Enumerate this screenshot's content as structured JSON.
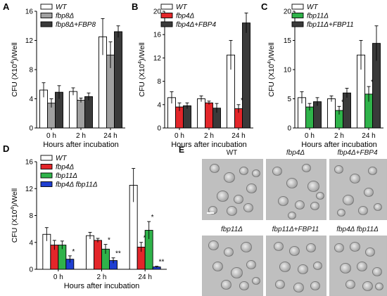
{
  "panel_letters": [
    "A",
    "B",
    "C",
    "D",
    "E"
  ],
  "colors": {
    "WT": "#ffffff",
    "fbp8": "#a0a0a0",
    "fbp4": "#e3262a",
    "fbp11": "#2fb34a",
    "comp": "#3a3a3a",
    "double": "#1f3fd1"
  },
  "chart_data": [
    {
      "panel": "A",
      "type": "bar",
      "categories": [
        "0 h",
        "2 h",
        "24 h"
      ],
      "xlabel": "Hours after incubation",
      "ylabel_main": "CFU (X10",
      "ylabel_sup": "4",
      "ylabel_tail": ")/Well",
      "ylim": [
        0,
        16
      ],
      "yticks": [
        "0",
        "4",
        "8",
        "12",
        "16"
      ],
      "legend_position": "top-left",
      "series": [
        {
          "name": "WT",
          "color": "#ffffff",
          "values": [
            5.2,
            5.0,
            12.5
          ],
          "errors": [
            1.0,
            0.5,
            2.5
          ],
          "marks": [
            "",
            "",
            ""
          ]
        },
        {
          "name": "fbp8Δ",
          "color": "#a0a0a0",
          "values": [
            3.4,
            3.8,
            10.0
          ],
          "errors": [
            0.6,
            0.3,
            1.8
          ],
          "marks": [
            "",
            "",
            ""
          ]
        },
        {
          "name": "fbp8Δ+FBP8",
          "color": "#3a3a3a",
          "values": [
            4.9,
            4.3,
            13.2
          ],
          "errors": [
            0.9,
            0.5,
            0.8
          ],
          "marks": [
            "",
            "",
            ""
          ]
        }
      ]
    },
    {
      "panel": "B",
      "type": "bar",
      "categories": [
        "0 h",
        "2 h",
        "24 h"
      ],
      "xlabel": "Hours after incubation",
      "ylabel_main": "CFU (X10",
      "ylabel_sup": "4",
      "ylabel_tail": ")/Well",
      "ylim": [
        0,
        20
      ],
      "yticks": [
        "0",
        "4",
        "8",
        "12",
        "16",
        "20"
      ],
      "legend_position": "top-left",
      "series": [
        {
          "name": "WT",
          "color": "#ffffff",
          "values": [
            5.2,
            5.0,
            12.5
          ],
          "errors": [
            1.0,
            0.5,
            2.5
          ],
          "marks": [
            "",
            "",
            ""
          ]
        },
        {
          "name": "fbp4Δ",
          "color": "#e3262a",
          "values": [
            3.6,
            4.3,
            3.3
          ],
          "errors": [
            0.7,
            0.3,
            0.7
          ],
          "marks": [
            "",
            "",
            "*"
          ]
        },
        {
          "name": "fbp4Δ+FBP4",
          "color": "#3a3a3a",
          "values": [
            3.8,
            3.4,
            18.0
          ],
          "errors": [
            0.5,
            0.8,
            1.7
          ],
          "marks": [
            "",
            "",
            ""
          ]
        }
      ]
    },
    {
      "panel": "C",
      "type": "bar",
      "categories": [
        "0 h",
        "2 h",
        "24 h"
      ],
      "xlabel": "Hours after incubation",
      "ylabel_main": "CFU (X10",
      "ylabel_sup": "4",
      "ylabel_tail": ")/Well",
      "ylim": [
        0,
        20
      ],
      "yticks": [
        "0",
        "5",
        "10",
        "15",
        "20"
      ],
      "legend_position": "top-left",
      "series": [
        {
          "name": "WT",
          "color": "#ffffff",
          "values": [
            5.2,
            5.0,
            12.5
          ],
          "errors": [
            1.0,
            0.5,
            2.5
          ],
          "marks": [
            "",
            "",
            ""
          ]
        },
        {
          "name": "fbp11Δ",
          "color": "#2fb34a",
          "values": [
            3.6,
            3.0,
            5.8
          ],
          "errors": [
            0.6,
            0.7,
            1.3
          ],
          "marks": [
            "",
            "*",
            "*"
          ]
        },
        {
          "name": "fbp11Δ+FBP11",
          "color": "#3a3a3a",
          "values": [
            4.5,
            6.0,
            14.5
          ],
          "errors": [
            0.7,
            0.8,
            3.0
          ],
          "marks": [
            "",
            "",
            ""
          ]
        }
      ]
    },
    {
      "panel": "D",
      "type": "bar",
      "categories": [
        "0 h",
        "2 h",
        "24 h"
      ],
      "xlabel": "Hours after incubation",
      "ylabel_main": "CFU (X10",
      "ylabel_sup": "4",
      "ylabel_tail": ")/Well",
      "ylim": [
        0,
        16
      ],
      "yticks": [
        "0",
        "4",
        "8",
        "12",
        "16"
      ],
      "legend_position": "top-left",
      "series": [
        {
          "name": "WT",
          "color": "#ffffff",
          "values": [
            5.2,
            5.0,
            12.5
          ],
          "errors": [
            1.0,
            0.5,
            2.5
          ],
          "marks": [
            "",
            "",
            ""
          ]
        },
        {
          "name": "fbp4Δ",
          "color": "#e3262a",
          "values": [
            3.6,
            4.3,
            3.3
          ],
          "errors": [
            0.7,
            0.3,
            0.7
          ],
          "marks": [
            "",
            "",
            "*"
          ]
        },
        {
          "name": "fbp11Δ",
          "color": "#2fb34a",
          "values": [
            3.6,
            3.0,
            5.8
          ],
          "errors": [
            0.6,
            0.7,
            1.3
          ],
          "marks": [
            "",
            "*",
            "*"
          ]
        },
        {
          "name": "fbp4Δ fbp11Δ",
          "color": "#1f3fd1",
          "values": [
            1.5,
            1.3,
            0.35
          ],
          "errors": [
            0.5,
            0.4,
            0.1
          ],
          "marks": [
            "*",
            "**",
            "**"
          ]
        }
      ]
    }
  ],
  "micrographs": [
    {
      "label": "WT"
    },
    {
      "label": "fbp4Δ"
    },
    {
      "label": "fbp4Δ+FBP4"
    },
    {
      "label": "fbp11Δ"
    },
    {
      "label": "fbp11Δ+FBP11"
    },
    {
      "label": "fbp4Δ fbp11Δ"
    }
  ]
}
